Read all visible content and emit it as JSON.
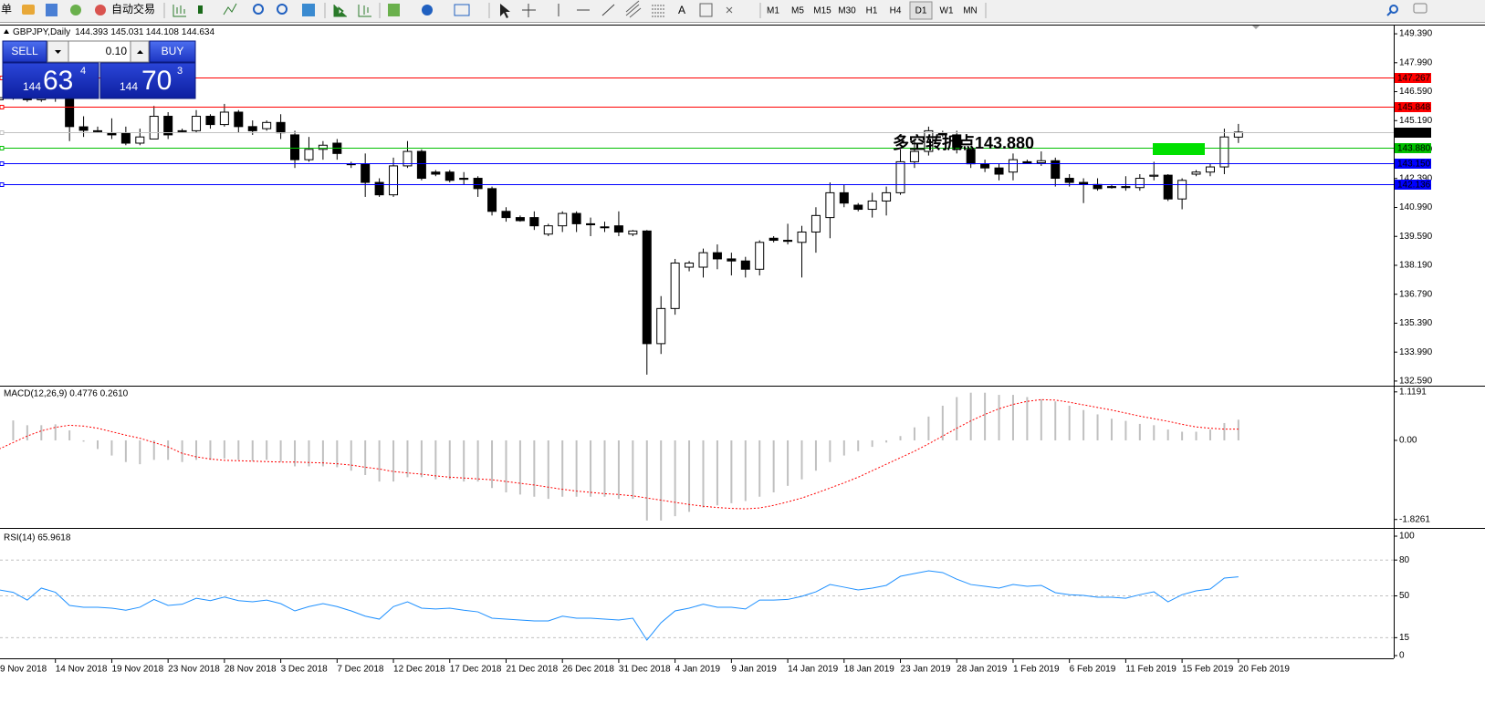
{
  "toolbar": {
    "menu": "单",
    "auto_trade": "自动交易",
    "text_tool": "A",
    "timeframes": [
      "M1",
      "M5",
      "M15",
      "M30",
      "H1",
      "H4",
      "D1",
      "W1",
      "MN"
    ]
  },
  "trade_panel": {
    "sell": "SELL",
    "buy": "BUY",
    "lots": "0.10",
    "bid_big": "144",
    "bid_main": "63",
    "bid_sup": "4",
    "ask_big": "144",
    "ask_main": "70",
    "ask_sup": "3"
  },
  "chart_data": [
    {
      "type": "candlestick",
      "title": "GBPJPY,Daily",
      "categories": [
        "9 Nov 2018",
        null,
        null,
        null,
        "14 Nov 2018",
        null,
        null,
        null,
        "19 Nov 2018",
        null,
        null,
        null,
        "23 Nov 2018",
        null,
        null,
        null,
        "28 Nov 2018",
        null,
        null,
        null,
        "3 Dec 2018",
        null,
        null,
        null,
        "7 Dec 2018",
        null,
        null,
        null,
        "12 Dec 2018",
        null,
        null,
        null,
        "17 Dec 2018",
        null,
        null,
        null,
        "21 Dec 2018",
        null,
        null,
        null,
        "26 Dec 2018",
        null,
        null,
        null,
        "31 Dec 2018",
        null,
        null,
        null,
        "4 Jan 2019",
        null,
        null,
        null,
        "9 Jan 2019",
        null,
        null,
        null,
        "14 Jan 2019",
        null,
        null,
        null,
        "18 Jan 2019",
        null,
        null,
        null,
        "23 Jan 2019",
        null,
        null,
        null,
        "28 Jan 2019",
        null,
        null,
        null,
        "1 Feb 2019",
        null,
        null,
        null,
        "6 Feb 2019",
        null,
        null,
        null,
        "11 Feb 2019",
        null,
        null,
        null,
        "15 Feb 2019",
        null,
        null,
        null,
        "20 Feb 2019"
      ],
      "open": [
        146.2,
        146.4,
        146.3,
        146.2,
        146.3,
        146.6,
        144.89,
        144.7,
        144.6,
        144.6,
        144.1,
        144.3,
        145.4,
        144.7,
        144.7,
        145.4,
        145.0,
        145.6,
        144.9,
        144.8,
        145.1,
        144.5,
        143.3,
        143.8,
        144.1,
        143.1,
        143.1,
        142.2,
        141.6,
        143.0,
        143.7,
        142.7,
        142.7,
        142.4,
        142.4,
        141.9,
        140.8,
        140.5,
        140.5,
        139.7,
        140.1,
        140.7,
        140.2,
        140.05,
        140.1,
        139.7,
        139.85,
        134.4,
        136.1,
        138.1,
        138.1,
        138.8,
        138.5,
        138.4,
        138.0,
        139.5,
        139.4,
        139.3,
        139.8,
        140.5,
        141.7,
        141.1,
        140.9,
        141.3,
        141.7,
        143.2,
        143.7,
        144.6,
        144.5,
        143.8,
        143.1,
        142.9,
        142.7,
        143.2,
        143.15,
        143.25,
        142.4,
        142.2,
        142.1,
        142.0,
        142.0,
        141.95,
        142.5,
        142.55,
        141.4,
        142.6,
        142.7,
        142.95,
        144.393
      ],
      "high": [
        146.5,
        146.7,
        146.5,
        146.5,
        146.8,
        146.7,
        145.4,
        144.9,
        145.3,
        144.9,
        144.8,
        145.9,
        145.6,
        144.8,
        145.7,
        145.5,
        146.0,
        145.7,
        145.2,
        145.2,
        145.5,
        144.7,
        144.4,
        144.2,
        144.3,
        143.2,
        143.6,
        142.4,
        143.4,
        144.2,
        143.8,
        142.8,
        142.8,
        142.7,
        142.5,
        142.0,
        141.0,
        140.6,
        140.8,
        140.2,
        140.8,
        140.8,
        140.5,
        140.3,
        140.8,
        139.9,
        139.9,
        136.7,
        138.5,
        138.4,
        139.0,
        139.2,
        138.8,
        138.6,
        139.4,
        139.6,
        140.2,
        140.1,
        141.0,
        142.2,
        142.1,
        141.2,
        141.7,
        142.0,
        143.8,
        144.3,
        144.9,
        144.7,
        144.7,
        143.9,
        143.3,
        143.1,
        143.6,
        143.3,
        143.7,
        143.4,
        142.6,
        142.4,
        142.4,
        142.1,
        142.5,
        142.6,
        143.2,
        142.6,
        142.4,
        142.8,
        143.1,
        144.8,
        145.031
      ],
      "low": [
        146.0,
        146.2,
        146.1,
        146.1,
        146.1,
        144.2,
        144.4,
        144.6,
        144.3,
        144.0,
        144.0,
        144.3,
        144.3,
        144.6,
        144.6,
        144.8,
        144.9,
        144.6,
        144.5,
        144.7,
        144.3,
        142.9,
        143.2,
        143.3,
        143.3,
        142.9,
        141.5,
        141.5,
        141.5,
        142.9,
        142.3,
        142.5,
        142.2,
        142.1,
        141.5,
        140.6,
        140.3,
        140.3,
        139.9,
        139.6,
        139.8,
        139.8,
        139.6,
        139.8,
        139.6,
        139.6,
        132.9,
        133.9,
        135.8,
        137.9,
        137.6,
        138.0,
        137.7,
        137.6,
        137.7,
        139.3,
        139.2,
        137.6,
        138.8,
        139.5,
        141.0,
        140.8,
        140.5,
        140.6,
        141.6,
        142.9,
        143.5,
        144.4,
        143.6,
        142.9,
        142.7,
        142.3,
        142.3,
        143.1,
        143.0,
        142.0,
        142.0,
        141.2,
        141.8,
        141.9,
        141.8,
        141.8,
        142.3,
        141.3,
        140.9,
        142.5,
        142.5,
        142.6,
        144.108
      ],
      "close": [
        146.3,
        146.3,
        146.2,
        146.3,
        146.6,
        144.9,
        144.72,
        144.7,
        144.5,
        144.1,
        144.4,
        145.4,
        144.5,
        144.67,
        145.4,
        145.0,
        145.6,
        144.9,
        144.7,
        145.1,
        144.6,
        143.3,
        143.8,
        144.0,
        143.6,
        143.08,
        142.2,
        141.6,
        143.0,
        143.7,
        142.4,
        142.6,
        142.3,
        142.35,
        141.9,
        140.8,
        140.5,
        140.35,
        140.1,
        140.1,
        140.7,
        140.2,
        140.15,
        140.05,
        139.8,
        139.85,
        134.4,
        136.1,
        138.3,
        138.3,
        138.8,
        138.5,
        138.4,
        138.0,
        139.3,
        139.4,
        139.35,
        139.8,
        140.6,
        141.7,
        141.2,
        140.9,
        141.3,
        141.7,
        143.2,
        143.7,
        144.7,
        144.5,
        143.8,
        143.1,
        142.9,
        142.6,
        143.3,
        143.15,
        143.25,
        142.4,
        142.2,
        142.1,
        141.9,
        141.95,
        141.95,
        142.4,
        142.55,
        141.4,
        142.3,
        142.7,
        142.95,
        144.4,
        144.634
      ],
      "up_color": "#ffffff",
      "down_color": "#000000",
      "ylim": [
        132.41,
        149.79
      ],
      "yticks": [
        {
          "value": 149.39,
          "label": "149.390"
        },
        {
          "value": 147.99,
          "label": "147.990"
        },
        {
          "value": 146.59,
          "label": "146.590"
        },
        {
          "value": 145.19,
          "label": "145.190"
        },
        {
          "value": 143.79,
          "label": "143.790"
        },
        {
          "value": 142.39,
          "label": "142.390"
        },
        {
          "value": 140.99,
          "label": "140.990"
        },
        {
          "value": 139.59,
          "label": "139.590"
        },
        {
          "value": 138.19,
          "label": "138.190"
        },
        {
          "value": 136.79,
          "label": "136.790"
        },
        {
          "value": 135.39,
          "label": "135.390"
        },
        {
          "value": 133.99,
          "label": "133.990"
        },
        {
          "value": 132.59,
          "label": "132.590"
        }
      ],
      "hlines": [
        {
          "value": 147.267,
          "label": "147.267",
          "color": "#ff0000",
          "label_color": "#ff0000"
        },
        {
          "value": 145.848,
          "label": "145.848",
          "color": "#ff0000",
          "label_color": "#ff0000"
        },
        {
          "value": 144.634,
          "label": "144.634",
          "color": "#c0c0c0",
          "label_color": "#000000"
        },
        {
          "value": 143.88,
          "label": "143.880",
          "color": "#00c000",
          "label_color": "#00c000"
        },
        {
          "value": 143.15,
          "label": "143.150",
          "color": "#0000ff",
          "label_color": "#0000ff"
        },
        {
          "value": 142.136,
          "label": "142.136",
          "color": "#0000ff",
          "label_color": "#0000ff"
        }
      ],
      "annotation": "多空转折点143.880",
      "annotation_color": "#00e000"
    },
    {
      "type": "macd",
      "title": "MACD(12,26,9) 0.4776 0.2610",
      "values": [
        0.46,
        0.46,
        0.35,
        0.35,
        0.37,
        0.23,
        -0.03,
        -0.2,
        -0.35,
        -0.5,
        -0.55,
        -0.45,
        -0.45,
        -0.5,
        -0.45,
        -0.45,
        -0.42,
        -0.45,
        -0.48,
        -0.45,
        -0.5,
        -0.6,
        -0.6,
        -0.6,
        -0.62,
        -0.7,
        -0.8,
        -0.95,
        -0.95,
        -0.85,
        -0.85,
        -0.9,
        -0.9,
        -0.95,
        -0.95,
        -1.1,
        -1.2,
        -1.25,
        -1.3,
        -1.35,
        -1.3,
        -1.3,
        -1.3,
        -1.3,
        -1.35,
        -1.35,
        -1.85,
        -1.85,
        -1.75,
        -1.65,
        -1.55,
        -1.5,
        -1.45,
        -1.4,
        -1.3,
        -1.2,
        -1.05,
        -0.9,
        -0.7,
        -0.5,
        -0.35,
        -0.25,
        -0.15,
        -0.05,
        0.1,
        0.3,
        0.55,
        0.8,
        1.0,
        1.1,
        1.1,
        1.05,
        1.05,
        1.0,
        0.95,
        0.9,
        0.8,
        0.7,
        0.6,
        0.5,
        0.45,
        0.38,
        0.35,
        0.25,
        0.2,
        0.2,
        0.25,
        0.4,
        0.4776
      ],
      "color": "#c0c0c0",
      "signal": [
        -0.2,
        -0.05,
        0.1,
        0.22,
        0.3,
        0.35,
        0.33,
        0.28,
        0.2,
        0.12,
        0.05,
        -0.05,
        -0.15,
        -0.3,
        -0.38,
        -0.43,
        -0.46,
        -0.47,
        -0.48,
        -0.49,
        -0.5,
        -0.5,
        -0.51,
        -0.52,
        -0.54,
        -0.57,
        -0.62,
        -0.66,
        -0.72,
        -0.75,
        -0.78,
        -0.82,
        -0.85,
        -0.87,
        -0.89,
        -0.91,
        -0.95,
        -0.99,
        -1.03,
        -1.08,
        -1.13,
        -1.17,
        -1.2,
        -1.23,
        -1.25,
        -1.28,
        -1.33,
        -1.38,
        -1.43,
        -1.48,
        -1.52,
        -1.55,
        -1.57,
        -1.58,
        -1.56,
        -1.5,
        -1.42,
        -1.33,
        -1.22,
        -1.1,
        -0.98,
        -0.85,
        -0.7,
        -0.55,
        -0.4,
        -0.25,
        -0.08,
        0.1,
        0.28,
        0.45,
        0.6,
        0.73,
        0.83,
        0.9,
        0.94,
        0.93,
        0.88,
        0.82,
        0.76,
        0.7,
        0.63,
        0.56,
        0.5,
        0.44,
        0.37,
        0.31,
        0.28,
        0.26,
        0.261
      ],
      "signal_color": "#ff0000",
      "ylim": [
        -2.0,
        1.22
      ],
      "yticks": [
        1.1191,
        {
          "value": 0,
          "label": "0.00"
        },
        -1.8261
      ]
    },
    {
      "type": "line",
      "title": "RSI(14) 65.9618",
      "values": [
        55,
        53,
        46.5,
        56.5,
        53,
        42,
        40.5,
        40.5,
        39.7,
        38,
        40.5,
        47,
        42,
        43,
        48,
        46,
        49,
        46,
        45,
        46.5,
        43.5,
        37.4,
        41,
        43.5,
        41,
        37.4,
        33,
        30.5,
        41,
        45,
        39.7,
        39,
        39.7,
        38,
        36.6,
        31.3,
        30.5,
        29.8,
        29,
        29,
        33,
        31.3,
        31.3,
        30.5,
        29.8,
        31.3,
        13,
        27.5,
        37.4,
        39.7,
        43,
        40.5,
        40.5,
        39,
        46.5,
        46.5,
        47,
        49.6,
        53.4,
        59.5,
        57.3,
        55,
        56.5,
        58.8,
        66.4,
        68.7,
        71,
        69.5,
        64,
        59.5,
        58,
        56.5,
        59.5,
        58,
        58.8,
        52.7,
        51,
        50.4,
        48.9,
        48.9,
        48,
        51,
        53.4,
        45,
        51,
        54.2,
        55.7,
        64.9,
        65.9618
      ],
      "color": "#1e90ff",
      "ylim": [
        -2.3,
        104.6
      ],
      "yticks": [
        0,
        15,
        50,
        80,
        100
      ]
    }
  ]
}
